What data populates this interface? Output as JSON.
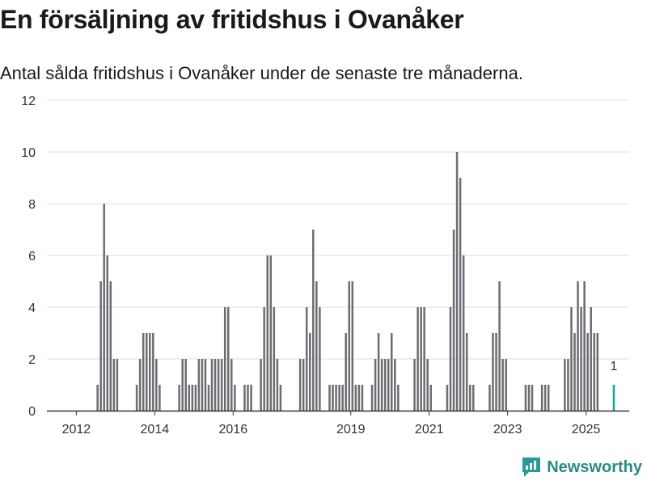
{
  "title": "En försäljning av fritidshus i Ovanåker",
  "subtitle": "Antal sålda fritidshus i Ovanåker under de senaste tre månaderna.",
  "brand": {
    "name": "Newsworthy",
    "color": "#2a9a96"
  },
  "chart_data": {
    "type": "bar",
    "ylim": [
      0,
      12
    ],
    "yticks": [
      0,
      2,
      4,
      6,
      8,
      10,
      12
    ],
    "xlim": [
      2011.25,
      2026.1
    ],
    "xticks": [
      {
        "value": 2012,
        "label": "2012"
      },
      {
        "value": 2014,
        "label": "2014"
      },
      {
        "value": 2016,
        "label": "2016"
      },
      {
        "value": 2019,
        "label": "2019"
      },
      {
        "value": 2021,
        "label": "2021"
      },
      {
        "value": 2023,
        "label": "2023"
      },
      {
        "value": 2025,
        "label": "2025"
      }
    ],
    "grid": true,
    "colors": {
      "bar": "#6e6c72",
      "highlight": "#1aa39b",
      "grid": "#dddddd",
      "axis": "#333333"
    },
    "start_date": "2012-01",
    "values": [
      0,
      0,
      0,
      0,
      0,
      0,
      1,
      5,
      8,
      6,
      5,
      2,
      2,
      0,
      0,
      0,
      0,
      0,
      1,
      2,
      3,
      3,
      3,
      3,
      2,
      1,
      0,
      0,
      0,
      0,
      0,
      1,
      2,
      2,
      1,
      1,
      1,
      2,
      2,
      2,
      1,
      2,
      2,
      2,
      2,
      4,
      4,
      2,
      1,
      0,
      0,
      1,
      1,
      1,
      0,
      0,
      2,
      4,
      6,
      6,
      4,
      2,
      1,
      0,
      0,
      0,
      0,
      0,
      2,
      2,
      4,
      3,
      7,
      5,
      4,
      0,
      0,
      1,
      1,
      1,
      1,
      1,
      3,
      5,
      5,
      1,
      1,
      1,
      0,
      0,
      1,
      2,
      3,
      2,
      2,
      2,
      3,
      2,
      1,
      0,
      0,
      0,
      0,
      2,
      4,
      4,
      4,
      2,
      1,
      0,
      0,
      0,
      0,
      1,
      4,
      7,
      10,
      9,
      6,
      3,
      1,
      1,
      0,
      0,
      0,
      0,
      1,
      3,
      3,
      5,
      2,
      2,
      0,
      0,
      0,
      0,
      0,
      1,
      1,
      1,
      0,
      0,
      1,
      1,
      1,
      0,
      0,
      0,
      0,
      2,
      2,
      4,
      3,
      5,
      4,
      5,
      3,
      4,
      3,
      3,
      0,
      0,
      0,
      0,
      1
    ],
    "highlight_label": "1"
  }
}
